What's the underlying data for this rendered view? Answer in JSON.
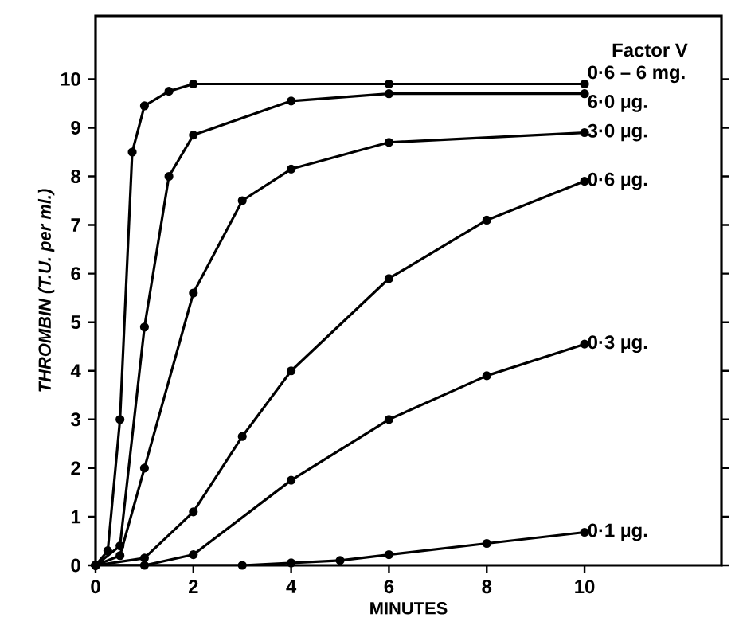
{
  "chart_data": {
    "type": "line",
    "xlabel": "MINUTES",
    "ylabel": "THROMBIN (T.U. per ml.)",
    "legend_title": "Factor V",
    "xlim": [
      0,
      12.8
    ],
    "ylim": [
      0,
      11.3
    ],
    "xticks": [
      0,
      2,
      4,
      6,
      8,
      10
    ],
    "yticks": [
      0,
      1,
      2,
      3,
      4,
      5,
      6,
      7,
      8,
      9,
      10
    ],
    "grid": false,
    "legend": "right",
    "marker": "circle",
    "line_style": "solid",
    "series": [
      {
        "name": "0·6 – 6 mg.",
        "color": "#000000",
        "x": [
          0,
          0.25,
          0.5,
          0.75,
          1.0,
          1.5,
          2.0,
          6,
          10
        ],
        "values": [
          0,
          0.3,
          3.0,
          8.5,
          9.45,
          9.75,
          9.9,
          9.9,
          9.9
        ]
      },
      {
        "name": "6·0 µg.",
        "color": "#000000",
        "x": [
          0,
          0.5,
          1.0,
          1.5,
          2.0,
          4,
          6,
          10
        ],
        "values": [
          0,
          0.4,
          4.9,
          8.0,
          8.85,
          9.55,
          9.7,
          9.7
        ]
      },
      {
        "name": "3·0 µg.",
        "color": "#000000",
        "x": [
          0,
          0.5,
          1.0,
          2.0,
          3.0,
          4.0,
          6,
          10
        ],
        "values": [
          0,
          0.2,
          2.0,
          5.6,
          7.5,
          8.15,
          8.7,
          8.9
        ]
      },
      {
        "name": "0·6 µg.",
        "color": "#000000",
        "x": [
          0,
          1.0,
          2.0,
          3.0,
          4.0,
          6,
          8,
          10
        ],
        "values": [
          0,
          0.15,
          1.1,
          2.65,
          4.0,
          5.9,
          7.1,
          7.9
        ]
      },
      {
        "name": "0·3 µg.",
        "color": "#000000",
        "x": [
          0,
          1.0,
          2.0,
          4.0,
          6,
          8,
          10
        ],
        "values": [
          0,
          0,
          0.22,
          1.75,
          3.0,
          3.9,
          4.55
        ]
      },
      {
        "name": "0·1 µg.",
        "color": "#000000",
        "x": [
          0,
          3.0,
          4.0,
          5.0,
          6,
          8,
          10
        ],
        "values": [
          0,
          0,
          0.05,
          0.1,
          0.22,
          0.45,
          0.68
        ]
      }
    ]
  }
}
